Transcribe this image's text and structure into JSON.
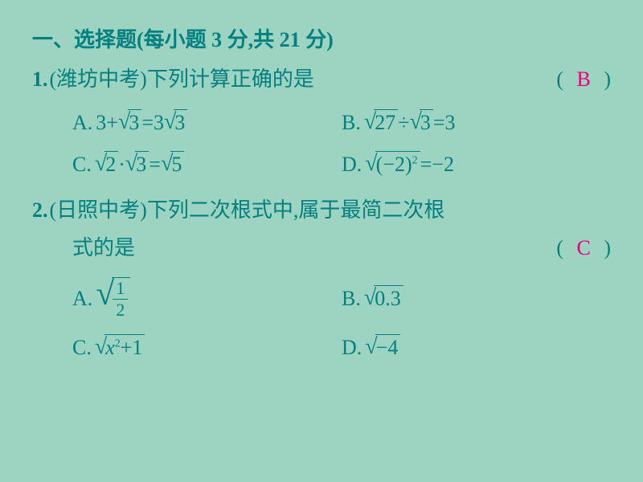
{
  "colors": {
    "bg": "#9dd4c1",
    "text": "#008080",
    "answer": "#e6007e"
  },
  "font": {
    "body_pt": 26,
    "family": "SimSun / KaiTi / Times New Roman"
  },
  "heading": "一、选择题(每小题 3 分,共 21 分)",
  "q1": {
    "num": "1.",
    "source": "(潍坊中考)",
    "stem": "下列计算正确的是",
    "paren_open": "(",
    "paren_close": ")",
    "answer": "B",
    "A_label": "A.",
    "A_expr": "3+√3=3√3",
    "B_label": "B.",
    "B_expr": "√27÷√3=3",
    "C_label": "C.",
    "C_expr": "√2·√3=√5",
    "D_label": "D.",
    "D_expr": "√((−2)²)=−2",
    "A_plain_pre": "3+",
    "A_rad1": "3",
    "A_mid": "=3",
    "A_rad2": "3",
    "B_rad1": "27",
    "B_mid": "÷",
    "B_rad2": "3",
    "B_post": "=3",
    "C_rad1": "2",
    "C_mid": " · ",
    "C_rad2": "3",
    "C_eq": "=",
    "C_rad3": "5",
    "D_rad_inner_a": "(−2)",
    "D_sup": "2",
    "D_post": "=−2"
  },
  "q2": {
    "num": "2.",
    "source": "(日照中考)",
    "stem": "下列二次根式中,属于最简二次根",
    "stem2": "式的是",
    "paren_open": "(",
    "paren_close": ")",
    "answer": "C",
    "A_label": "A.",
    "A_frac_num": "1",
    "A_frac_den": "2",
    "B_label": "B.",
    "B_rad": "0.3",
    "C_label": "C.",
    "C_rad_a": "x",
    "C_sup": "2",
    "C_rad_b": "+1",
    "D_label": "D.",
    "D_rad": "−4"
  }
}
